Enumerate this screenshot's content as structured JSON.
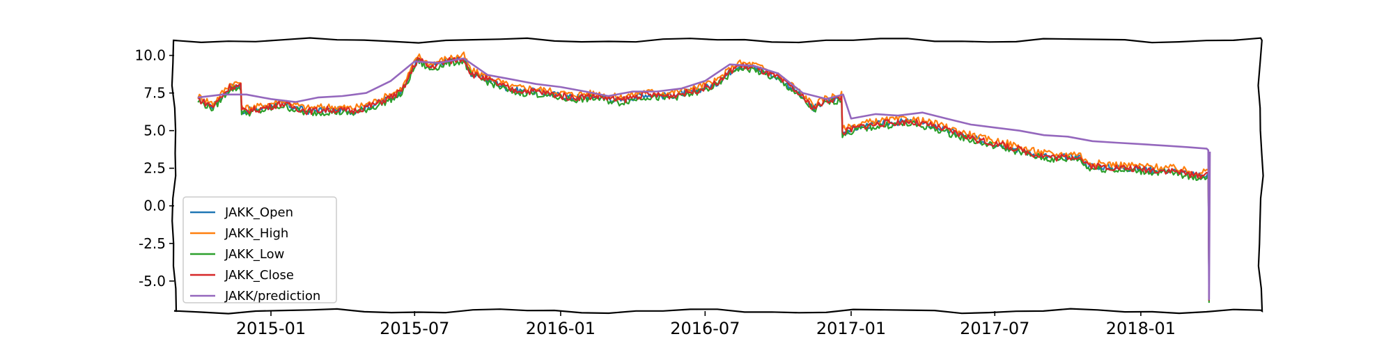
{
  "chart_data": {
    "type": "line",
    "title": "",
    "xlabel": "",
    "ylabel": "",
    "xlim": [
      "2014-09-01",
      "2018-06-01"
    ],
    "ylim": [
      -7,
      11
    ],
    "yticks": [
      10.0,
      7.5,
      5.0,
      2.5,
      0.0,
      -2.5,
      -5.0
    ],
    "ytick_labels": [
      "10.0",
      "7.5",
      "5.0",
      "2.5",
      "0.0",
      "-2.5",
      "-5.0"
    ],
    "xticks": [
      "2015-01",
      "2015-07",
      "2016-01",
      "2016-07",
      "2017-01",
      "2017-07",
      "2018-01"
    ],
    "grid": false,
    "legend_position": "lower-left",
    "colors": {
      "JAKK_Open": "#1f77b4",
      "JAKK_High": "#ff7f0e",
      "JAKK_Low": "#2ca02c",
      "JAKK_Close": "#d62728",
      "JAKK/prediction": "#9467bd"
    },
    "close_series": {
      "x": [
        "2014-10-01",
        "2014-10-20",
        "2014-11-10",
        "2014-11-24",
        "2014-11-25",
        "2014-12-15",
        "2015-01-15",
        "2015-02-15",
        "2015-03-15",
        "2015-04-15",
        "2015-05-15",
        "2015-06-15",
        "2015-07-05",
        "2015-07-20",
        "2015-08-10",
        "2015-09-01",
        "2015-09-10",
        "2015-10-01",
        "2015-11-01",
        "2015-12-01",
        "2016-01-15",
        "2016-02-15",
        "2016-03-15",
        "2016-04-15",
        "2016-05-15",
        "2016-06-15",
        "2016-07-15",
        "2016-08-10",
        "2016-09-01",
        "2016-10-01",
        "2016-10-20",
        "2016-11-15",
        "2016-12-01",
        "2016-12-20",
        "2016-12-21",
        "2017-01-15",
        "2017-02-15",
        "2017-03-15",
        "2017-04-15",
        "2017-05-15",
        "2017-06-15",
        "2017-07-15",
        "2017-08-15",
        "2017-09-15",
        "2017-10-15",
        "2017-10-25",
        "2017-11-15",
        "2017-12-15",
        "2018-01-15",
        "2018-02-15",
        "2018-03-10",
        "2018-03-25",
        "2018-03-27",
        "2018-03-28"
      ],
      "y": [
        7.1,
        6.6,
        7.9,
        8.0,
        6.3,
        6.4,
        6.8,
        6.3,
        6.4,
        6.3,
        6.8,
        7.6,
        9.8,
        9.2,
        9.6,
        9.8,
        8.8,
        8.4,
        7.7,
        7.6,
        7.2,
        7.3,
        7.0,
        7.4,
        7.3,
        7.6,
        8.1,
        9.3,
        9.2,
        8.5,
        7.8,
        6.5,
        7.0,
        7.2,
        4.9,
        5.3,
        5.5,
        5.6,
        5.3,
        4.8,
        4.3,
        4.0,
        3.5,
        3.2,
        3.3,
        2.7,
        2.6,
        2.5,
        2.4,
        2.3,
        2.0,
        2.1,
        2.2,
        -6.3
      ]
    },
    "series": [
      {
        "name": "JAKK_Open",
        "offset": 0.0
      },
      {
        "name": "JAKK_High",
        "offset": 0.2
      },
      {
        "name": "JAKK_Low",
        "offset": -0.15
      },
      {
        "name": "JAKK_Close",
        "offset": 0.0
      },
      {
        "name": "JAKK/prediction",
        "x": [
          "2014-10-01",
          "2014-11-01",
          "2014-12-01",
          "2015-01-01",
          "2015-02-01",
          "2015-03-01",
          "2015-04-01",
          "2015-05-01",
          "2015-06-01",
          "2015-07-01",
          "2015-08-01",
          "2015-09-01",
          "2015-10-01",
          "2015-11-01",
          "2015-12-01",
          "2016-01-01",
          "2016-02-01",
          "2016-03-01",
          "2016-04-01",
          "2016-05-01",
          "2016-06-01",
          "2016-07-01",
          "2016-08-01",
          "2016-09-01",
          "2016-10-01",
          "2016-11-01",
          "2016-12-01",
          "2016-12-22",
          "2017-01-01",
          "2017-02-01",
          "2017-03-01",
          "2017-04-01",
          "2017-05-01",
          "2017-06-01",
          "2017-07-01",
          "2017-08-01",
          "2017-09-01",
          "2017-10-01",
          "2017-11-01",
          "2017-12-01",
          "2018-01-01",
          "2018-02-01",
          "2018-03-01",
          "2018-03-25",
          "2018-03-27",
          "2018-03-28",
          "2018-03-29"
        ],
        "y": [
          7.2,
          7.4,
          7.4,
          7.1,
          6.9,
          7.2,
          7.3,
          7.5,
          8.3,
          9.6,
          9.5,
          9.8,
          8.7,
          8.4,
          8.1,
          7.9,
          7.6,
          7.3,
          7.6,
          7.6,
          7.8,
          8.3,
          9.4,
          9.3,
          8.8,
          7.5,
          7.1,
          7.4,
          5.8,
          6.1,
          6.0,
          6.2,
          5.8,
          5.4,
          5.2,
          5.0,
          4.7,
          4.6,
          4.3,
          4.2,
          4.1,
          4.0,
          3.9,
          3.8,
          3.7,
          -6.2,
          3.6
        ]
      }
    ]
  }
}
